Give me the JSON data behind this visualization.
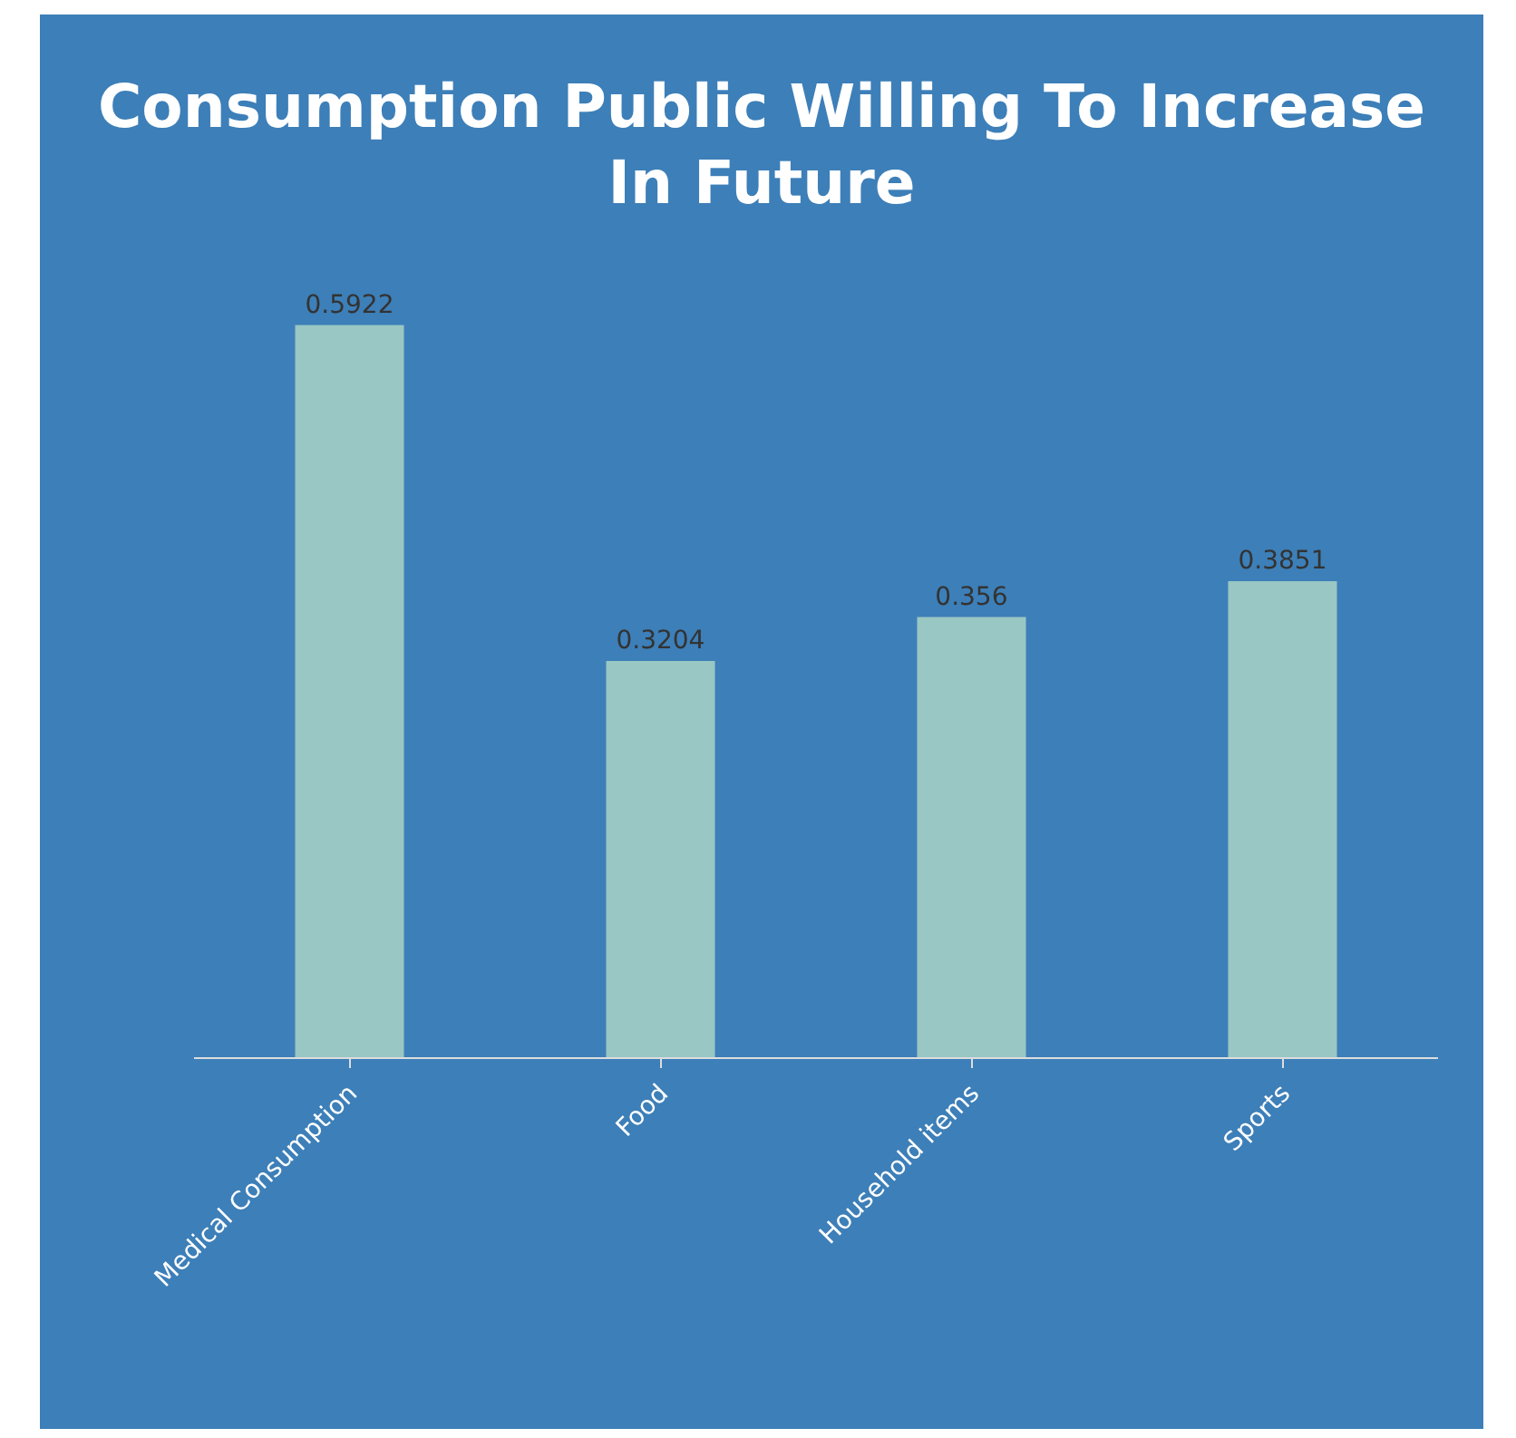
{
  "chart_data": {
    "type": "bar",
    "title": "Consumption Public Willing To Increase In Future",
    "categories": [
      "Medical Consumption",
      "Food",
      "Household items",
      "Sports"
    ],
    "values": [
      0.5922,
      0.3204,
      0.356,
      0.3851
    ],
    "color": "#a9d4c6",
    "data_labels": true,
    "grid": false,
    "legend": false
  }
}
